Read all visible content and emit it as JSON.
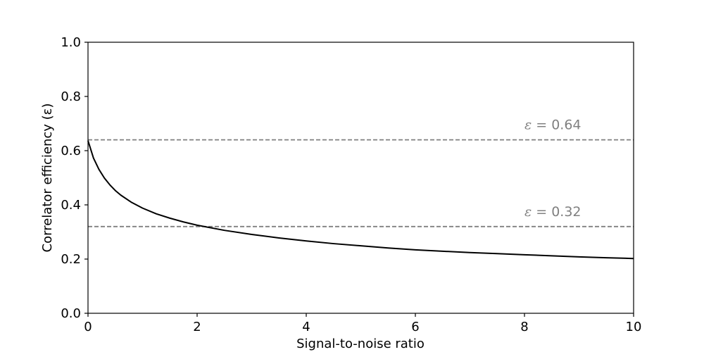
{
  "chart_data": {
    "type": "line",
    "title": "",
    "xlabel": "Signal-to-noise ratio",
    "ylabel": "Correlator efficiency (ε)",
    "xlim": [
      0,
      10
    ],
    "ylim": [
      0,
      1.0
    ],
    "x_ticks": [
      "0",
      "2",
      "4",
      "6",
      "8",
      "10"
    ],
    "y_ticks": [
      "0.0",
      "0.2",
      "0.4",
      "0.6",
      "0.8",
      "1.0"
    ],
    "grid": false,
    "legend": "none",
    "series": [
      {
        "color": "#000000",
        "style": "solid",
        "x": [
          0,
          0.1,
          0.2,
          0.3,
          0.4,
          0.5,
          0.6,
          0.8,
          1.0,
          1.25,
          1.5,
          1.75,
          2.0,
          2.5,
          3.0,
          3.5,
          4.0,
          4.5,
          5.0,
          5.5,
          6.0,
          6.5,
          7.0,
          7.5,
          8.0,
          8.5,
          9.0,
          9.5,
          10.0
        ],
        "y": [
          0.637,
          0.573,
          0.531,
          0.499,
          0.474,
          0.453,
          0.436,
          0.409,
          0.388,
          0.367,
          0.351,
          0.337,
          0.325,
          0.306,
          0.291,
          0.278,
          0.267,
          0.257,
          0.249,
          0.241,
          0.234,
          0.229,
          0.224,
          0.22,
          0.216,
          0.212,
          0.208,
          0.205,
          0.202
        ]
      }
    ],
    "reference_lines": [
      {
        "y": 0.64,
        "color": "#808080",
        "style": "dashed",
        "label_symbol": "ε",
        "label_value": " = 0.64",
        "label_x": 8.0
      },
      {
        "y": 0.32,
        "color": "#808080",
        "style": "dashed",
        "label_symbol": "ε",
        "label_value": " = 0.32",
        "label_x": 8.0
      }
    ]
  }
}
